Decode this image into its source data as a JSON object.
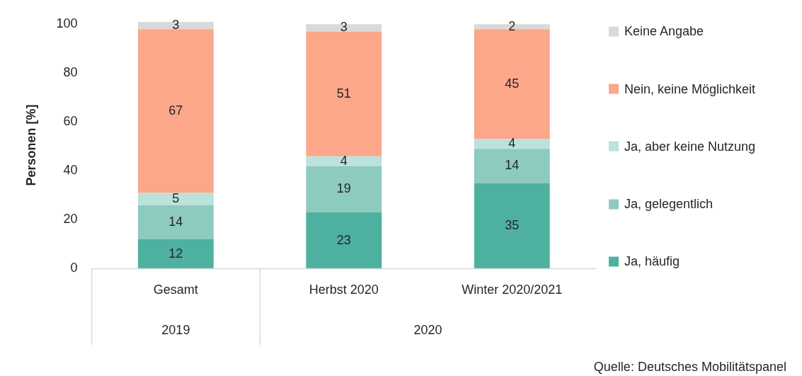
{
  "chart_data": {
    "type": "bar",
    "stacked": true,
    "ylabel": "Personen [%]",
    "categories": [
      "Gesamt",
      "Herbst 2020",
      "Winter 2020/2021"
    ],
    "series": [
      {
        "name": "Ja, häufig",
        "color": "#4eb1a0",
        "values": [
          12,
          23,
          35
        ]
      },
      {
        "name": "Ja, gelegentlich",
        "color": "#8ecbbf",
        "values": [
          14,
          19,
          14
        ]
      },
      {
        "name": "Ja, aber keine Nutzung",
        "color": "#bbe2dc",
        "values": [
          5,
          4,
          4
        ]
      },
      {
        "name": "Nein, keine Möglichkeit",
        "color": "#fca68a",
        "values": [
          67,
          51,
          45
        ]
      },
      {
        "name": "Keine Angabe",
        "color": "#d9d9d9",
        "values": [
          3,
          3,
          2
        ]
      }
    ],
    "ylim": [
      0,
      101
    ],
    "yticks": [
      0,
      20,
      40,
      60,
      80,
      100
    ],
    "grid": false,
    "legend": "right",
    "data_labels": true,
    "annotations": [
      "2019",
      "2020",
      "Quelle: Deutsches Mobilitätspanel"
    ]
  }
}
